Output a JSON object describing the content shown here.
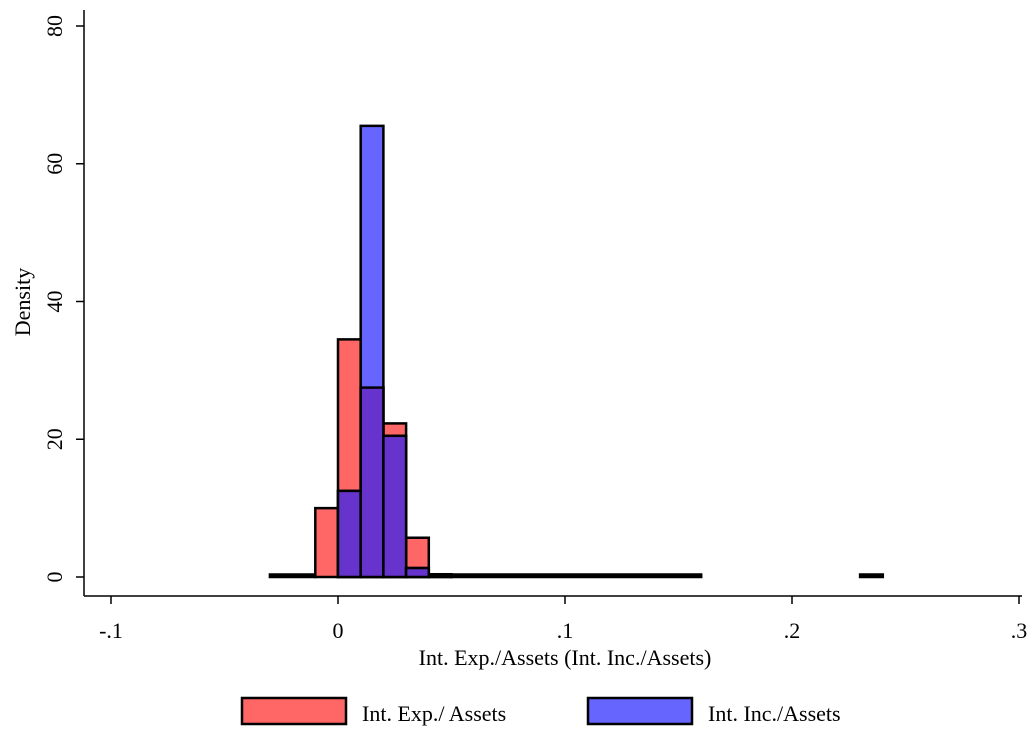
{
  "chart_data": {
    "type": "bar",
    "subtype": "overlaid-histogram",
    "title": "",
    "xlabel": "Int. Exp./Assets (Int. Inc./Assets)",
    "ylabel": "Density",
    "xlim": [
      -0.11,
      0.31
    ],
    "ylim": [
      0,
      80
    ],
    "xticks": [
      -0.1,
      0,
      0.1,
      0.2,
      0.3
    ],
    "xtick_labels": [
      "-.1",
      "0",
      ".1",
      ".2",
      ".3"
    ],
    "yticks": [
      0,
      20,
      40,
      60,
      80
    ],
    "ytick_labels": [
      "0",
      "20",
      "40",
      "60",
      "80"
    ],
    "grid": false,
    "legend_position": "bottom",
    "series": [
      {
        "name": "Int. Exp./ Assets",
        "color": "#ff6666",
        "overlap_color": "#6633cc",
        "bins": [
          {
            "x0": -0.03,
            "x1": -0.01,
            "y": 0.1
          },
          {
            "x0": -0.01,
            "x1": 0.0,
            "y": 10
          },
          {
            "x0": 0.0,
            "x1": 0.01,
            "y": 34.5
          },
          {
            "x0": 0.01,
            "x1": 0.02,
            "y": 27.5
          },
          {
            "x0": 0.02,
            "x1": 0.03,
            "y": 22.3
          },
          {
            "x0": 0.03,
            "x1": 0.04,
            "y": 5.7
          },
          {
            "x0": 0.04,
            "x1": 0.05,
            "y": 0.4
          },
          {
            "x0": 0.05,
            "x1": 0.16,
            "y": 0.1
          },
          {
            "x0": 0.23,
            "x1": 0.24,
            "y": 0.1
          }
        ]
      },
      {
        "name": "Int. Inc./Assets",
        "color": "#6666ff",
        "bins": [
          {
            "x0": 0.0,
            "x1": 0.01,
            "y": 12.5
          },
          {
            "x0": 0.01,
            "x1": 0.02,
            "y": 65.5
          },
          {
            "x0": 0.02,
            "x1": 0.03,
            "y": 20.5
          },
          {
            "x0": 0.03,
            "x1": 0.04,
            "y": 1.3
          },
          {
            "x0": 0.04,
            "x1": 0.05,
            "y": 0.1
          }
        ]
      }
    ]
  }
}
